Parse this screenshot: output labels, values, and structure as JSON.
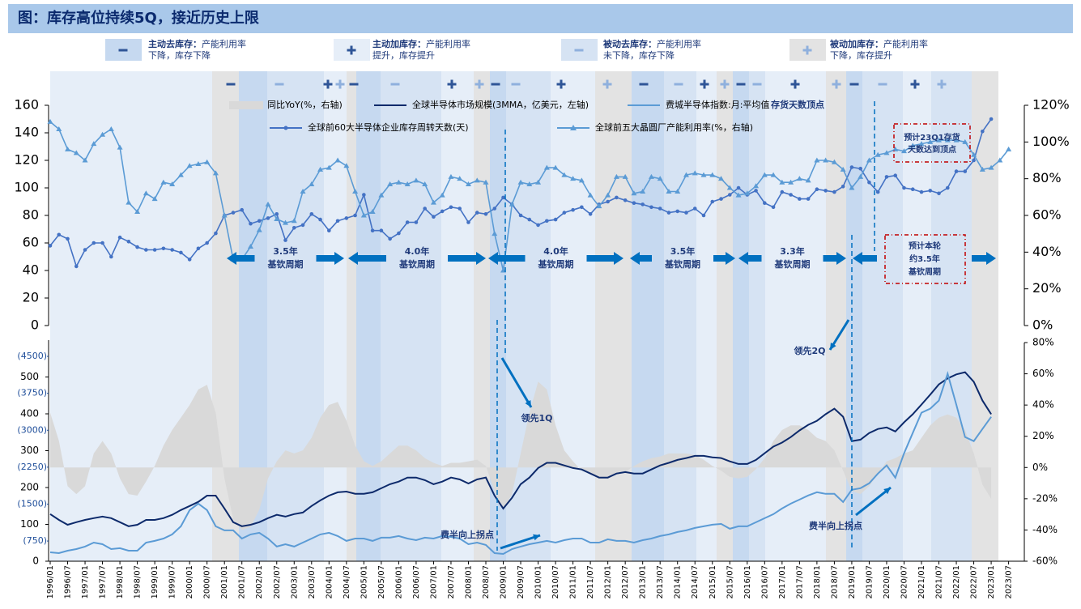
{
  "header": {
    "title": "图：库存高位持续5Q，接近历史上限"
  },
  "phase_legend": [
    {
      "name": "主动去库存：",
      "desc": "产能利用率下降，库存下降"
    },
    {
      "name": "主动加库存：",
      "desc": "产能利用率提升，库存提升"
    },
    {
      "name": "被动去库存：",
      "desc": "产能利用率未下降，库存下降"
    },
    {
      "name": "被动加库存：",
      "desc": "产能利用率下降，库存提升"
    }
  ],
  "chart_data": [
    {
      "type": "line",
      "ylim": [
        0,
        160
      ],
      "yticks": [
        0,
        20,
        40,
        60,
        80,
        100,
        120,
        140,
        160
      ],
      "y2lim": [
        0,
        120
      ],
      "y2ticks": [
        {
          "value": 0,
          "label": "0%"
        },
        {
          "value": 20,
          "label": "20%"
        },
        {
          "value": 40,
          "label": "40%"
        },
        {
          "value": 60,
          "label": "60%"
        },
        {
          "value": 80,
          "label": "80%"
        },
        {
          "value": 100,
          "label": "100%"
        },
        {
          "value": 120,
          "label": "120%"
        }
      ],
      "series": [
        {
          "name": "全球前60大半导体企业库存周转天数(天)",
          "color": "#4472c4",
          "marker": "circle",
          "axis": "y",
          "values": [
            58,
            66,
            63,
            43,
            55,
            60,
            60,
            50,
            64,
            61,
            57,
            55,
            55,
            56,
            55,
            53,
            48,
            56,
            60,
            67,
            80,
            82,
            84,
            74,
            76,
            78,
            81,
            62,
            71,
            73,
            81,
            77,
            69,
            76,
            78,
            80,
            95,
            69,
            69,
            63,
            67,
            75,
            75,
            85,
            79,
            83,
            86,
            85,
            75,
            82,
            81,
            85,
            93,
            88,
            80,
            77,
            73,
            76,
            77,
            82,
            84,
            86,
            81,
            88,
            90,
            93,
            91,
            89,
            88,
            86,
            85,
            82,
            83,
            82,
            85,
            80,
            90,
            92,
            95,
            100,
            95,
            98,
            89,
            86,
            97,
            95,
            92,
            92,
            99,
            98,
            97,
            101,
            115,
            114,
            104,
            97,
            108,
            109,
            100,
            99,
            97,
            98,
            96,
            100,
            112,
            112,
            120,
            141,
            150,
            null,
            null
          ]
        },
        {
          "name": "全球前五大晶圆厂产能利用率(%，右轴)",
          "color": "#5b9bd5",
          "marker": "triangle",
          "axis": "y2",
          "values": [
            111,
            107,
            96,
            94,
            90,
            99,
            104,
            107,
            97,
            67,
            62,
            72,
            69,
            78,
            77,
            82,
            87,
            88,
            89,
            83,
            60,
            36,
            36,
            43,
            52,
            66,
            58,
            56,
            57,
            73,
            77,
            85,
            86,
            90,
            87,
            73,
            60,
            62,
            71,
            77,
            78,
            77,
            79,
            77,
            67,
            71,
            81,
            80,
            77,
            79,
            78,
            50,
            30,
            66,
            78,
            77,
            78,
            86,
            86,
            82,
            80,
            79,
            71,
            65,
            71,
            81,
            81,
            72,
            73,
            81,
            80,
            73,
            73,
            82,
            83,
            82,
            82,
            80,
            75,
            71,
            72,
            76,
            82,
            82,
            78,
            78,
            80,
            79,
            90,
            90,
            89,
            85,
            75,
            81,
            90,
            93,
            94,
            96,
            95,
            98,
            99,
            100,
            101,
            101,
            101,
            100,
            93,
            85,
            86,
            90,
            96
          ]
        }
      ],
      "annotations": {
        "peak_label": "存货天数顶点",
        "cycles": [
          {
            "years": "3.5年",
            "label": "基钦周期"
          },
          {
            "years": "4.0年",
            "label": "基钦周期"
          },
          {
            "years": "4.0年",
            "label": "基钦周期"
          },
          {
            "years": "3.5年",
            "label": "基钦周期"
          },
          {
            "years": "3.3年",
            "label": "基钦周期"
          }
        ],
        "forecast_cycle": [
          "预计本轮",
          "约3.5年",
          "基钦周期"
        ],
        "forecast_peak": [
          "预计23Q1存货",
          "天数达到顶点"
        ]
      }
    },
    {
      "type": "line",
      "categories": [
        "1996/01",
        null,
        "1996/07",
        null,
        "1997/01",
        null,
        "1997/07",
        null,
        "1998/01",
        null,
        "1998/07",
        null,
        "1999/01",
        null,
        "1999/07",
        null,
        "2000/01",
        null,
        "2000/07",
        null,
        "2001/01",
        null,
        "2001/07",
        null,
        "2002/01",
        null,
        "2002/07",
        null,
        "2003/01",
        null,
        "2003/07",
        null,
        "2004/01",
        null,
        "2004/07",
        null,
        "2005/01",
        null,
        "2005/07",
        null,
        "2006/01",
        null,
        "2006/07",
        null,
        "2007/01",
        null,
        "2007/07",
        null,
        "2008/01",
        null,
        "2008/07",
        null,
        "2009/01",
        null,
        "2009/07",
        null,
        "2010/01",
        null,
        "2010/07",
        null,
        "2011/01",
        null,
        "2011/07",
        null,
        "2012/01",
        null,
        "2012/07",
        null,
        "2013/01",
        null,
        "2013/07",
        null,
        "2014/01",
        null,
        "2014/07",
        null,
        "2015/01",
        null,
        "2015/07",
        null,
        "2016/01",
        null,
        "2016/07",
        null,
        "2017/01",
        null,
        "2017/07",
        null,
        "2018/01",
        null,
        "2018/07",
        null,
        "2019/01",
        null,
        "2019/07",
        null,
        "2020/01",
        null,
        "2020/07",
        null,
        "2021/01",
        null,
        "2021/07",
        null,
        "2022/01",
        null,
        "2022/07",
        null,
        "2023/01",
        null,
        "2023/07"
      ],
      "ylim": [
        0,
        600
      ],
      "yticks": [
        0,
        100,
        200,
        300,
        400,
        500
      ],
      "y3lim": [
        340,
        4830
      ],
      "y3ticks": [
        {
          "value": 750,
          "label": "(750)"
        },
        {
          "value": 1500,
          "label": "(1500)"
        },
        {
          "value": 2250,
          "label": "(2250)"
        },
        {
          "value": 3000,
          "label": "(3000)"
        },
        {
          "value": 3750,
          "label": "(3750)"
        },
        {
          "value": 4500,
          "label": "(4500)"
        }
      ],
      "y2lim": [
        -60,
        80
      ],
      "y2ticks": [
        {
          "value": -60,
          "label": "-60%"
        },
        {
          "value": -40,
          "label": "-40%"
        },
        {
          "value": -20,
          "label": "-20%"
        },
        {
          "value": 0,
          "label": "0%"
        },
        {
          "value": 20,
          "label": "20%"
        },
        {
          "value": 40,
          "label": "40%"
        },
        {
          "value": 60,
          "label": "60%"
        },
        {
          "value": 80,
          "label": "80%"
        }
      ],
      "series": [
        {
          "name": "同比YoY(%，右轴)",
          "color": "#d9d9d9",
          "kind": "area",
          "axis": "y2",
          "values": [
            35,
            17,
            -12,
            -17,
            -12,
            9,
            17,
            9,
            -7,
            -17,
            -18,
            -9,
            1,
            14,
            24,
            32,
            40,
            50,
            53,
            35,
            -7,
            -33,
            -40,
            -38,
            -27,
            -7,
            4,
            11,
            9,
            11,
            19,
            32,
            40,
            42,
            30,
            14,
            4,
            1,
            4,
            9,
            14,
            14,
            11,
            6,
            3,
            1,
            3,
            3,
            4,
            5,
            1,
            -15,
            -27,
            -17,
            9,
            35,
            55,
            50,
            27,
            11,
            4,
            -2,
            -4,
            -7,
            -7,
            -3,
            -3,
            1,
            4,
            6,
            7,
            9,
            9,
            9,
            8,
            5,
            1,
            -2,
            -6,
            -7,
            -6,
            -1,
            6,
            17,
            24,
            27,
            27,
            24,
            19,
            17,
            11,
            -2,
            -15,
            -17,
            -12,
            -4,
            4,
            6,
            9,
            11,
            19,
            27,
            32,
            34,
            32,
            24,
            9,
            -11,
            -20,
            null,
            null
          ]
        },
        {
          "name": "全球半导体市场规模(3MMA，亿美元，左轴)",
          "color": "#0d2a6b",
          "kind": "line",
          "axis": "y",
          "values": [
            128,
            112,
            99,
            106,
            112,
            117,
            121,
            117,
            106,
            95,
            99,
            112,
            112,
            117,
            126,
            139,
            150,
            161,
            178,
            178,
            143,
            106,
            95,
            99,
            106,
            117,
            126,
            121,
            128,
            132,
            150,
            165,
            178,
            187,
            189,
            183,
            183,
            187,
            198,
            209,
            216,
            227,
            227,
            220,
            209,
            216,
            227,
            222,
            211,
            222,
            227,
            178,
            143,
            172,
            209,
            227,
            253,
            267,
            267,
            260,
            253,
            249,
            238,
            227,
            227,
            238,
            242,
            238,
            238,
            249,
            260,
            267,
            275,
            280,
            286,
            286,
            282,
            280,
            271,
            264,
            264,
            275,
            293,
            311,
            322,
            337,
            355,
            370,
            381,
            399,
            414,
            392,
            326,
            330,
            348,
            359,
            363,
            352,
            377,
            399,
            425,
            452,
            480,
            496,
            507,
            513,
            487,
            436,
            399,
            null,
            null
          ]
        },
        {
          "name": "费城半导体指数:月:平均值",
          "color": "#5b9bd5",
          "kind": "line",
          "axis": "y3",
          "values": [
            521,
            505,
            554,
            587,
            637,
            719,
            686,
            587,
            604,
            554,
            554,
            719,
            752,
            801,
            884,
            1049,
            1378,
            1510,
            1378,
            1049,
            966,
            966,
            801,
            884,
            917,
            801,
            637,
            686,
            637,
            719,
            801,
            884,
            917,
            851,
            752,
            801,
            801,
            752,
            818,
            818,
            851,
            801,
            768,
            818,
            801,
            851,
            834,
            801,
            686,
            719,
            670,
            505,
            488,
            587,
            637,
            686,
            719,
            752,
            719,
            768,
            801,
            801,
            719,
            719,
            785,
            752,
            752,
            719,
            768,
            801,
            851,
            884,
            933,
            966,
            1016,
            1049,
            1082,
            1098,
            999,
            1049,
            1049,
            1131,
            1213,
            1296,
            1411,
            1510,
            1592,
            1675,
            1741,
            1708,
            1708,
            1543,
            1790,
            1823,
            1922,
            2120,
            2285,
            2037,
            2532,
            2944,
            3356,
            3438,
            3603,
            4147,
            3521,
            2861,
            2779,
            3026,
            3273,
            null,
            null
          ]
        }
      ],
      "annotations": {
        "lead1": "领先1Q",
        "lead2": "领先2Q",
        "turn1": "费半向上拐点",
        "turn2": "费半向上拐点"
      }
    }
  ]
}
